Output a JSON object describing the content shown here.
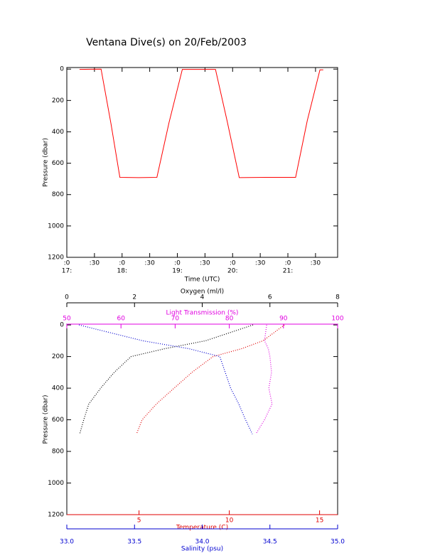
{
  "chart_data": [
    {
      "type": "line",
      "title": "Ventana Dive(s) on 20/Feb/2003",
      "x": [
        17.23,
        17.62,
        17.8,
        17.96,
        18.3,
        18.63,
        18.85,
        19.09,
        19.69,
        19.9,
        20.12,
        20.6,
        21.14,
        21.35,
        21.58,
        21.64
      ],
      "values": [
        2,
        0,
        350,
        690,
        692,
        690,
        340,
        2,
        2,
        330,
        692,
        690,
        690,
        330,
        5,
        5
      ],
      "color": "#ff0000",
      "xlabel": "Time (UTC)",
      "ylabel": "Pressure (dbar)",
      "xlim": [
        17,
        21.9
      ],
      "ylim": [
        1200,
        -10
      ],
      "xticks": [
        {
          "value": 17,
          "label": ":0"
        },
        {
          "value": 17.5,
          "label": ":30"
        },
        {
          "value": 18,
          "label": ":0"
        },
        {
          "value": 18.5,
          "label": ":30"
        },
        {
          "value": 19,
          "label": ":0"
        },
        {
          "value": 19.5,
          "label": ":30"
        },
        {
          "value": 20,
          "label": ":0"
        },
        {
          "value": 20.5,
          "label": ":30"
        },
        {
          "value": 21,
          "label": ":0"
        },
        {
          "value": 21.5,
          "label": ":30"
        }
      ],
      "hour_labels": [
        {
          "value": 17,
          "label": "17:"
        },
        {
          "value": 18,
          "label": "18:"
        },
        {
          "value": 19,
          "label": "19:"
        },
        {
          "value": 20,
          "label": "20:"
        },
        {
          "value": 21,
          "label": "21:"
        }
      ],
      "yticks": [
        0,
        200,
        400,
        600,
        800,
        1000,
        1200
      ]
    },
    {
      "type": "profile",
      "ylabel": "Pressure (dbar)",
      "pressure": [
        0,
        100,
        150,
        200,
        300,
        400,
        500,
        600,
        690
      ],
      "ylim": [
        1200,
        -5
      ],
      "yticks": [
        0,
        200,
        400,
        600,
        800,
        1000,
        1200
      ],
      "x_axes": [
        {
          "title": "Oxygen (ml/l)",
          "color": "#000000",
          "position": "top",
          "xlim": [
            0,
            8
          ],
          "xticks": [
            0,
            2,
            4,
            6,
            8
          ],
          "values": [
            5.5,
            4.1,
            2.9,
            1.9,
            1.4,
            1.0,
            0.65,
            0.5,
            0.38
          ]
        },
        {
          "title": "Light Transmission (%)",
          "color": "#e000e0",
          "position": "top",
          "xlim": [
            50,
            100
          ],
          "xticks": [
            50,
            60,
            70,
            80,
            90,
            100
          ],
          "values": [
            86.9,
            86.5,
            87.2,
            87.5,
            87.8,
            87.3,
            87.9,
            86.5,
            84.9
          ]
        },
        {
          "title": "Temperature (C)",
          "color": "#e00000",
          "position": "bottom",
          "xlim": [
            1,
            16
          ],
          "xticks": [
            5,
            10,
            15
          ],
          "values": [
            13.05,
            11.87,
            10.69,
            9.1,
            7.93,
            6.94,
            5.96,
            5.17,
            4.86
          ]
        },
        {
          "title": "Salinity (psu)",
          "color": "#0000d0",
          "position": "bottom",
          "xlim": [
            33,
            35
          ],
          "xticks": [
            {
              "value": 33,
              "label": "33.0"
            },
            33.5,
            {
              "value": 34,
              "label": "34.0"
            },
            34.5,
            {
              "value": 35,
              "label": "35.0"
            }
          ],
          "values": [
            33.09,
            33.56,
            33.9,
            34.13,
            34.17,
            34.21,
            34.27,
            34.32,
            34.37
          ]
        }
      ]
    }
  ]
}
